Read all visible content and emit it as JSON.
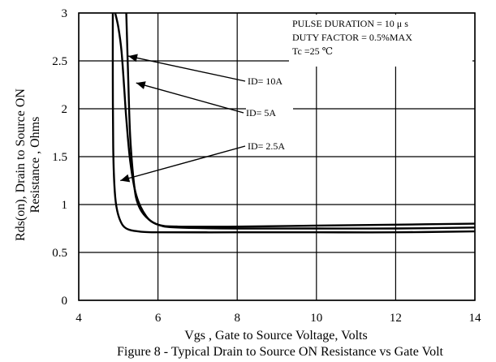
{
  "chart_data": {
    "type": "line",
    "xlabel": "Vgs , Gate to Source Voltage, Volts",
    "ylabel": [
      "Rds(on), Drain to Source ON",
      "Resistance , Ohms"
    ],
    "caption": "Figure 8 - Typical Drain to Source ON Resistance vs Gate Volt",
    "xlim": [
      4,
      14
    ],
    "ylim": [
      0,
      3
    ],
    "xticks": [
      4,
      6,
      8,
      10,
      12,
      14
    ],
    "yticks": [
      0,
      0.5,
      1,
      1.5,
      2,
      2.5,
      3
    ],
    "grid": true,
    "conditions": [
      "PULSE   DURATION = 10 μ s",
      "DUTY   FACTOR = 0.5%MAX",
      "Tc =25  ℃"
    ],
    "series": [
      {
        "name": "ID= 10A",
        "x": [
          5.2,
          5.25,
          5.3,
          5.4,
          5.5,
          5.7,
          6.0,
          6.5,
          8,
          10,
          12,
          14
        ],
        "y": [
          3.0,
          2.3,
          1.7,
          1.2,
          1.0,
          0.87,
          0.79,
          0.77,
          0.77,
          0.78,
          0.79,
          0.8
        ]
      },
      {
        "name": "ID= 5A",
        "x": [
          4.92,
          5.0,
          5.08,
          5.15,
          5.2,
          5.3,
          5.45,
          5.7,
          6.0,
          6.5,
          8,
          10,
          12,
          14
        ],
        "y": [
          3.0,
          2.85,
          2.6,
          2.2,
          1.9,
          1.45,
          1.1,
          0.88,
          0.79,
          0.76,
          0.75,
          0.75,
          0.75,
          0.76
        ]
      },
      {
        "name": "ID= 2.5A",
        "x": [
          4.86,
          4.86,
          4.87,
          4.9,
          4.95,
          5.05,
          5.2,
          5.5,
          6.0,
          8,
          10,
          12,
          14
        ],
        "y": [
          3.0,
          2.3,
          1.6,
          1.2,
          0.98,
          0.83,
          0.75,
          0.72,
          0.71,
          0.71,
          0.71,
          0.71,
          0.72
        ]
      }
    ]
  }
}
